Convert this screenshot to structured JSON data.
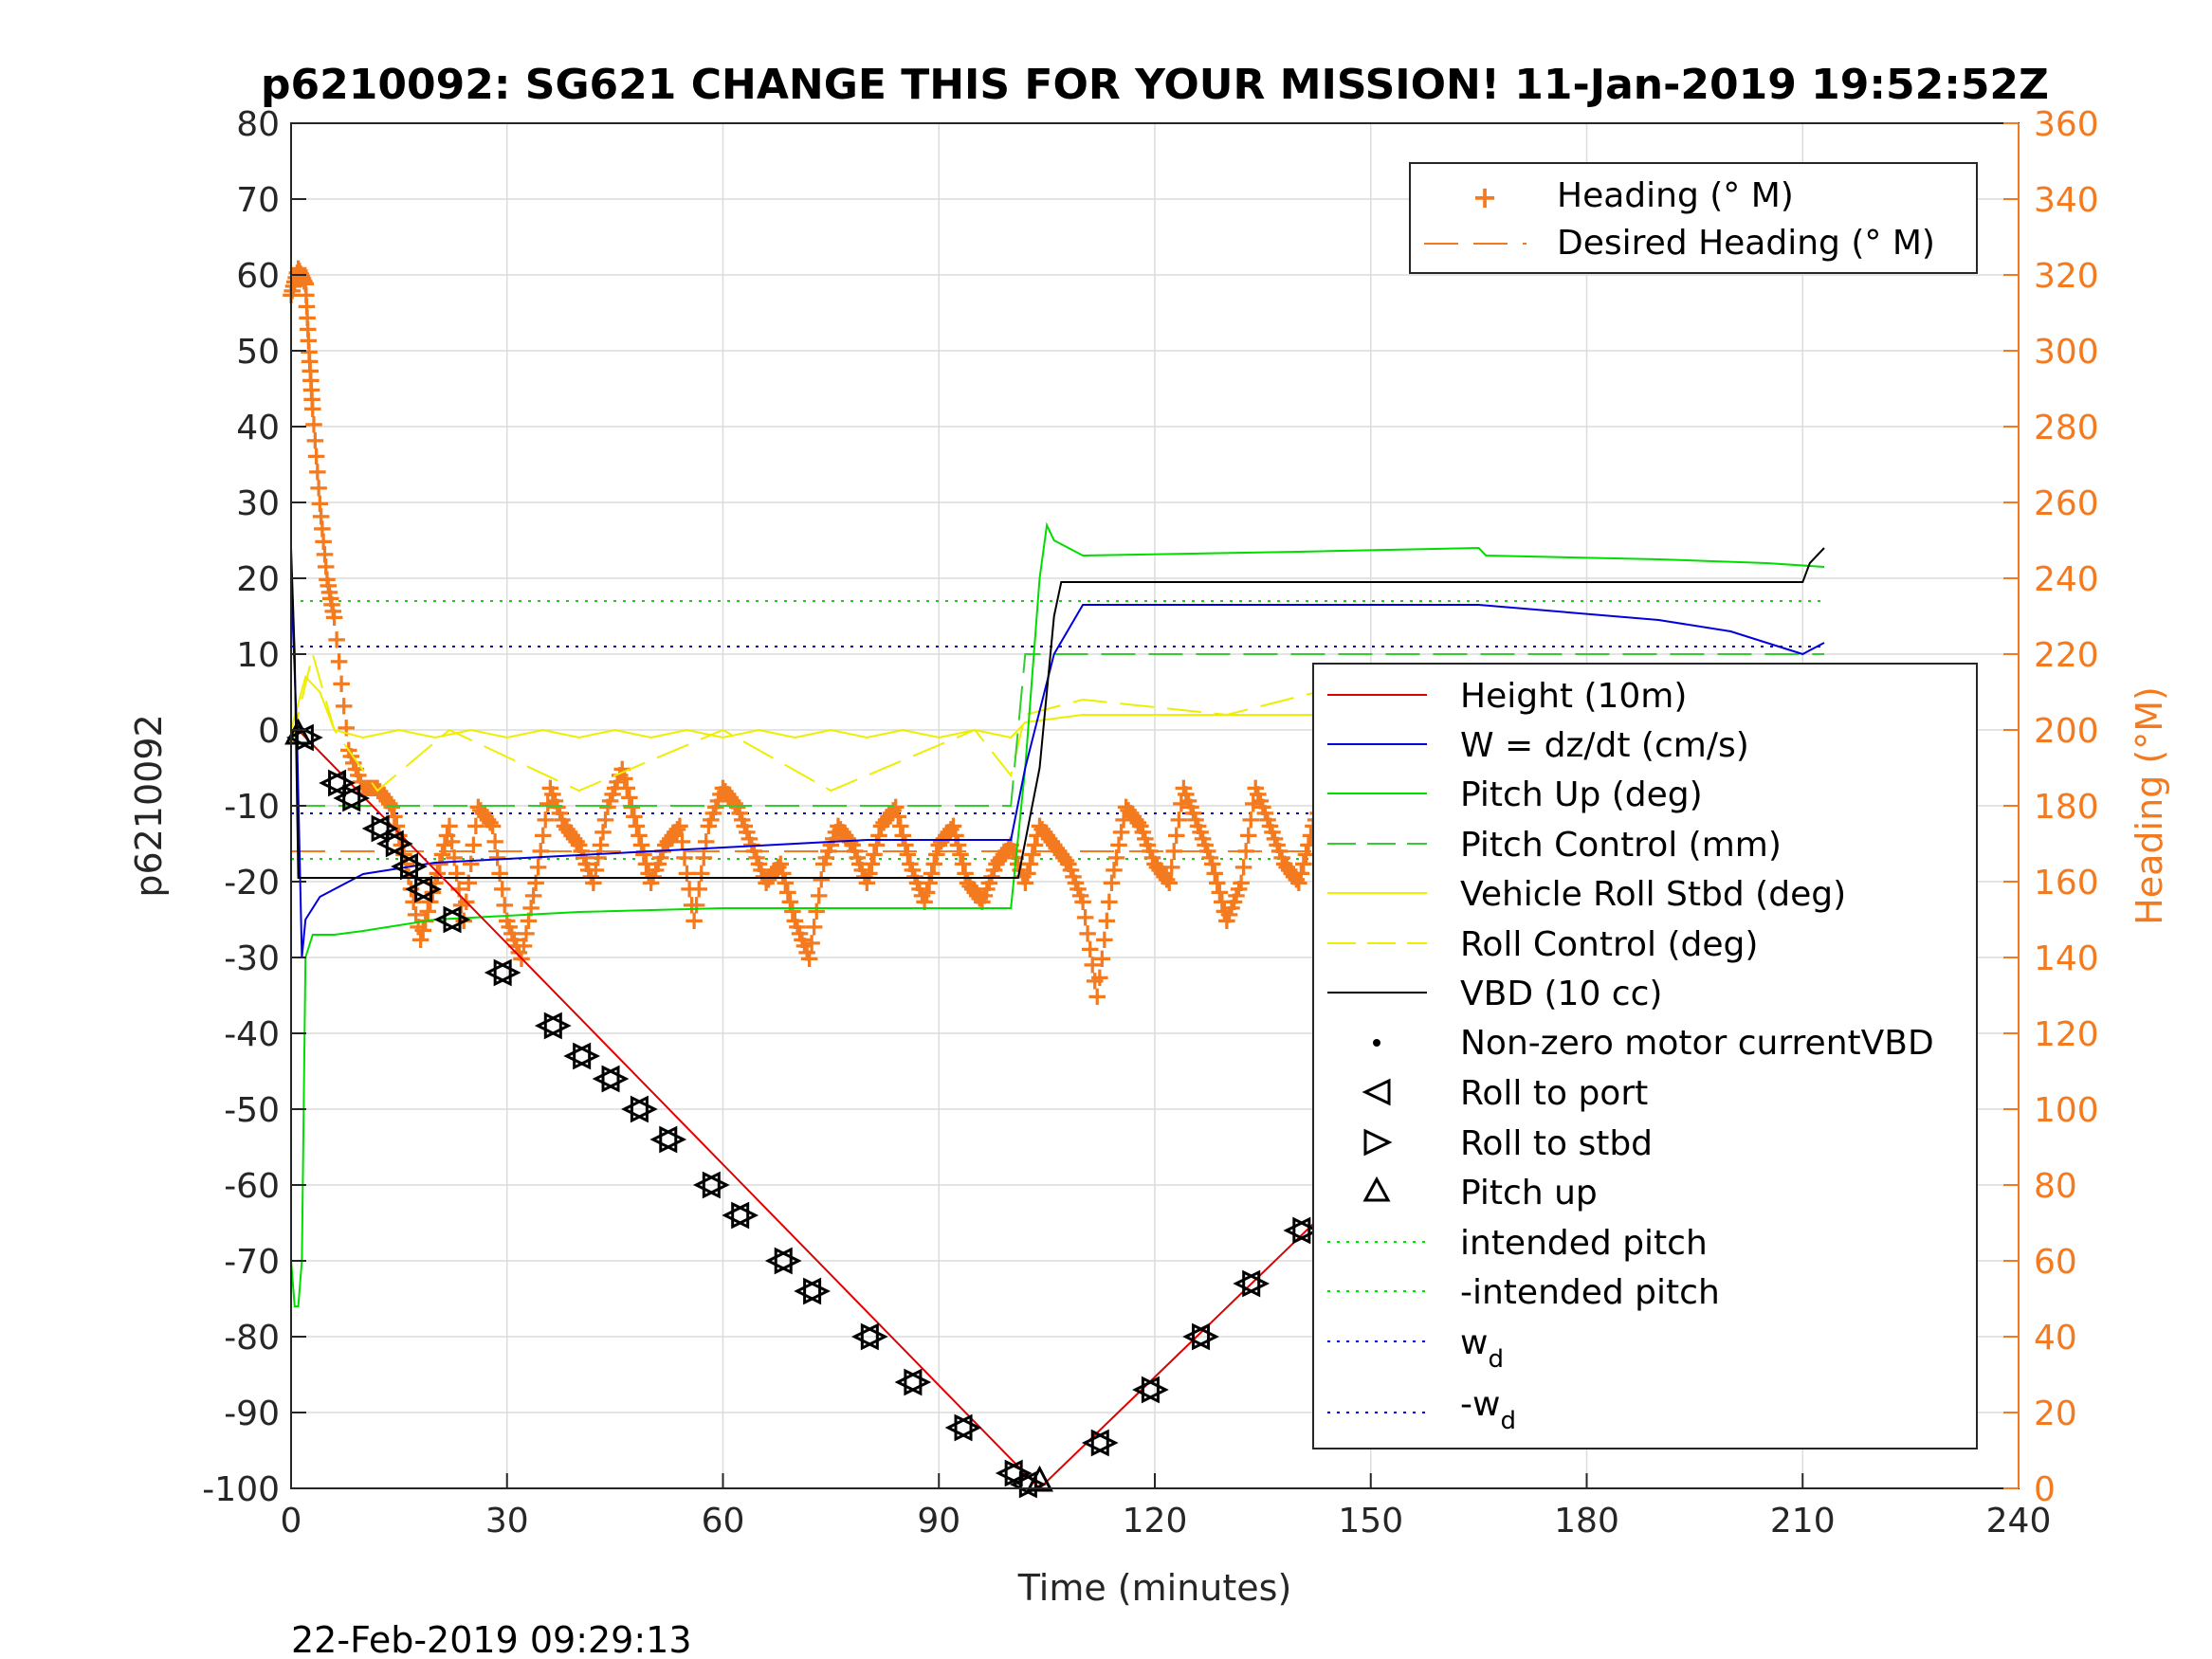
{
  "chart_data": {
    "type": "line",
    "title": "p6210092: SG621 CHANGE THIS FOR YOUR MISSION! 11-Jan-2019 19:52:52Z",
    "xlabel": "Time (minutes)",
    "ylabel_left": "p6210092",
    "ylabel_right": "Heading (°M)",
    "footer": "22-Feb-2019 09:29:13",
    "xlim": [
      0,
      240
    ],
    "ylim_left": [
      -100,
      80
    ],
    "ylim_right": [
      0,
      360
    ],
    "x_ticks": [
      0,
      30,
      60,
      90,
      120,
      150,
      180,
      210,
      240
    ],
    "y_ticks_left": [
      80,
      70,
      60,
      50,
      40,
      30,
      20,
      10,
      0,
      -10,
      -20,
      -30,
      -40,
      -50,
      -60,
      -70,
      -80,
      -90,
      -100
    ],
    "y_ticks_right": [
      360,
      340,
      320,
      300,
      280,
      260,
      240,
      220,
      200,
      180,
      160,
      140,
      120,
      100,
      80,
      60,
      40,
      20,
      0
    ],
    "grid": true,
    "colors": {
      "heading": "#f47a20",
      "height": "#e00000",
      "w": "#0000dd",
      "pitch": "#00dd00",
      "pitch_control": "#33cc33",
      "roll": "#eeee00",
      "vbd": "#000000",
      "right_axis": "#f47a20"
    },
    "legend_top": {
      "position": "top-right",
      "entries": [
        "Heading (° M)",
        "Desired Heading (° M)"
      ]
    },
    "legend_main": {
      "position": "right",
      "entries": [
        "Height (10m)",
        "W = dz/dt (cm/s)",
        "Pitch Up (deg)",
        "Pitch Control (mm)",
        "Vehicle Roll Stbd (deg)",
        "Roll Control (deg)",
        "VBD (10 cc)",
        "Non-zero motor currentVBD",
        "Roll to port",
        "Roll to stbd",
        "Pitch up",
        "intended pitch",
        "-intended pitch",
        "w",
        "-w"
      ],
      "subscript": "d"
    },
    "series": [
      {
        "name": "Height (10m)",
        "axis": "left",
        "x": [
          0,
          1,
          104,
          213
        ],
        "y": [
          0,
          0,
          -100,
          0
        ]
      },
      {
        "name": "W = dz/dt (cm/s)",
        "axis": "left",
        "x": [
          0,
          0.8,
          1.5,
          2,
          4,
          10,
          20,
          40,
          60,
          80,
          100,
          102,
          106,
          110,
          140,
          165,
          190,
          200,
          210,
          213
        ],
        "y": [
          20,
          0,
          -30,
          -25,
          -22,
          -19,
          -17.5,
          -16.5,
          -15.5,
          -14.5,
          -14.5,
          -5,
          10,
          16.5,
          16.5,
          16.5,
          14.5,
          13,
          10,
          11.5
        ]
      },
      {
        "name": "Pitch Up (deg)",
        "axis": "left",
        "x": [
          0,
          0.5,
          1,
          1.5,
          2,
          3,
          6,
          10,
          20,
          40,
          60,
          80,
          100,
          102,
          104,
          105,
          106,
          108,
          110,
          140,
          165,
          166,
          190,
          205,
          213
        ],
        "y": [
          -70,
          -76,
          -76,
          -70,
          -30,
          -27,
          -27,
          -26.5,
          -25,
          -24,
          -23.5,
          -23.5,
          -23.5,
          -5,
          20,
          27,
          25,
          24,
          23,
          23.5,
          24,
          23,
          22.5,
          22,
          21.5
        ]
      },
      {
        "name": "Pitch Control (mm)",
        "axis": "left",
        "x": [
          0,
          100,
          102,
          213
        ],
        "y": [
          -10,
          -10,
          10,
          10
        ]
      },
      {
        "name": "Vehicle Roll Stbd (deg)",
        "axis": "left",
        "x": [
          0,
          2,
          4,
          6,
          10,
          15,
          20,
          25,
          30,
          35,
          40,
          45,
          50,
          55,
          60,
          65,
          70,
          75,
          80,
          85,
          90,
          95,
          100,
          102,
          110,
          120,
          130,
          140,
          150,
          160,
          170,
          180,
          190,
          200,
          205,
          210,
          213
        ],
        "y": [
          0,
          7,
          5,
          0,
          -1,
          0,
          -1,
          0,
          -1,
          0,
          -1,
          0,
          -1,
          0,
          -1,
          0,
          -1,
          0,
          -1,
          0,
          -1,
          0,
          -1,
          1,
          2,
          2,
          2,
          2,
          2,
          2,
          2,
          2,
          2,
          2,
          1,
          7,
          2
        ]
      },
      {
        "name": "Roll Control (deg)",
        "axis": "left",
        "x": [
          0,
          3,
          6,
          12,
          22,
          40,
          60,
          75,
          95,
          100,
          102,
          110,
          130,
          155,
          180,
          205,
          210,
          213
        ],
        "y": [
          -2,
          10,
          0,
          -8,
          0,
          -8,
          0,
          -8,
          0,
          -6,
          2,
          4,
          2,
          8,
          2,
          4,
          2,
          0
        ]
      },
      {
        "name": "VBD (10 cc)",
        "axis": "left",
        "x": [
          0,
          0.5,
          1,
          100,
          101,
          104,
          106,
          107,
          210,
          211,
          212,
          213
        ],
        "y": [
          24,
          10,
          -19.5,
          -19.5,
          -19.5,
          -5,
          15,
          19.5,
          19.5,
          22,
          23,
          24
        ]
      },
      {
        "name": "Heading (° M)",
        "axis": "right",
        "x": [
          0,
          1,
          2,
          2.5,
          3,
          4,
          5,
          6,
          8,
          10,
          12,
          14,
          16,
          18,
          20,
          22,
          24,
          26,
          28,
          30,
          32,
          34,
          36,
          38,
          40,
          42,
          44,
          46,
          48,
          50,
          52,
          54,
          56,
          58,
          60,
          62,
          64,
          66,
          68,
          70,
          72,
          74,
          76,
          78,
          80,
          82,
          84,
          86,
          88,
          90,
          92,
          94,
          96,
          98,
          100,
          102,
          104,
          106,
          108,
          110,
          112,
          114,
          116,
          118,
          120,
          122,
          124,
          126,
          128,
          130,
          132,
          134,
          136,
          138,
          140,
          142,
          144,
          146,
          148,
          150,
          152,
          154,
          156,
          158,
          160,
          162,
          164,
          166,
          168,
          170,
          172,
          174,
          176,
          178,
          180,
          182,
          184,
          186,
          188,
          190,
          192,
          194,
          196,
          198,
          200,
          202,
          204,
          206,
          208,
          210,
          212,
          213
        ],
        "y": [
          315,
          322,
          318,
          300,
          285,
          260,
          240,
          230,
          195,
          185,
          185,
          180,
          165,
          145,
          160,
          175,
          150,
          180,
          175,
          150,
          140,
          160,
          185,
          175,
          170,
          160,
          180,
          190,
          175,
          160,
          170,
          175,
          150,
          175,
          185,
          180,
          170,
          160,
          165,
          150,
          140,
          165,
          175,
          170,
          160,
          175,
          180,
          165,
          155,
          170,
          175,
          160,
          155,
          165,
          170,
          160,
          175,
          170,
          165,
          155,
          130,
          160,
          180,
          175,
          165,
          160,
          185,
          175,
          165,
          150,
          160,
          185,
          175,
          165,
          160,
          175,
          185,
          175,
          165,
          130,
          145,
          175,
          170,
          165,
          160,
          170,
          185,
          175,
          165,
          160,
          155,
          180,
          175,
          170,
          160,
          175,
          185,
          180,
          170,
          160,
          160,
          170,
          175,
          165,
          160,
          175,
          190,
          205,
          195,
          185,
          175,
          165
        ]
      },
      {
        "name": "Desired Heading (° M)",
        "axis": "right",
        "x": [
          0,
          213
        ],
        "y": [
          168,
          168
        ]
      },
      {
        "name": "intended pitch",
        "axis": "left",
        "x": [
          0,
          213
        ],
        "y": [
          17,
          17
        ]
      },
      {
        "name": "-intended pitch",
        "axis": "left",
        "x": [
          0,
          213
        ],
        "y": [
          -17,
          -17
        ]
      },
      {
        "name": "w",
        "axis": "left",
        "x": [
          0,
          213
        ],
        "y": [
          11,
          11
        ]
      },
      {
        "name": "-w",
        "axis": "left",
        "x": [
          0,
          213
        ],
        "y": [
          -11,
          -11
        ]
      }
    ],
    "markers": {
      "roll_to_port": {
        "x": [
          1.5,
          6,
          8,
          12,
          14,
          16,
          18,
          22,
          29,
          36,
          40,
          44,
          48,
          52,
          58,
          62,
          68,
          72,
          80,
          86,
          93,
          100,
          102,
          112,
          119,
          126,
          133,
          140,
          150,
          158,
          165,
          172,
          179,
          186,
          197,
          205,
          208,
          211,
          213
        ],
        "y": [
          -1,
          -7,
          -9,
          -13,
          -15,
          -18,
          -21,
          -25,
          -32,
          -39,
          -43,
          -46,
          -50,
          -54,
          -60,
          -64,
          -70,
          -74,
          -80,
          -86,
          -92,
          -98,
          -99.5,
          -94,
          -87,
          -80,
          -73,
          -66,
          -56,
          -49,
          -42,
          -35,
          -28,
          -21,
          -12.5,
          -5,
          -3.5,
          -1.5,
          -0.5
        ]
      },
      "roll_to_stbd": {
        "x": [
          1.5,
          6,
          8,
          12,
          14,
          16,
          18,
          22,
          29,
          36,
          40,
          44,
          48,
          52,
          58,
          62,
          68,
          72,
          80,
          86,
          93,
          100,
          102,
          112,
          119,
          126,
          133,
          140,
          150,
          158,
          165,
          172,
          179,
          186,
          197,
          205,
          208,
          211,
          213
        ],
        "y": [
          -1,
          -7,
          -9,
          -13,
          -15,
          -18,
          -21,
          -25,
          -32,
          -39,
          -43,
          -46,
          -50,
          -54,
          -60,
          -64,
          -70,
          -74,
          -80,
          -86,
          -92,
          -98,
          -99.5,
          -94,
          -87,
          -80,
          -73,
          -66,
          -56,
          -49,
          -42,
          -35,
          -28,
          -21,
          -12.5,
          -5,
          -3.5,
          -1.5,
          -0.5
        ]
      },
      "pitch_up": {
        "x": [
          1,
          104
        ],
        "y": [
          -0.5,
          -99
        ]
      }
    }
  }
}
